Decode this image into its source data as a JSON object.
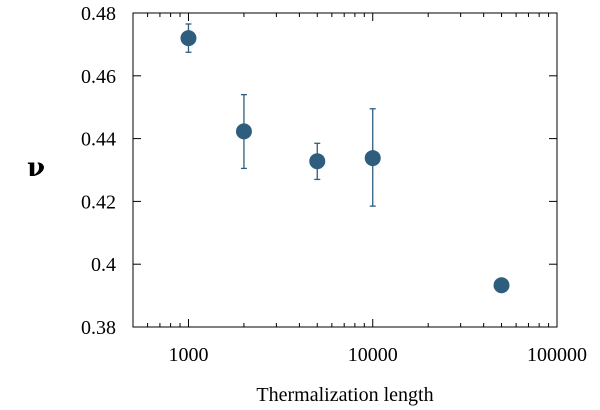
{
  "chart_data": {
    "type": "scatter",
    "title": "",
    "xlabel": "Thermalization length",
    "ylabel": "ν",
    "xscale": "log",
    "xlim": [
      500,
      100000
    ],
    "ylim": [
      0.38,
      0.48
    ],
    "x_ticks": [
      1000,
      10000,
      100000
    ],
    "x_tick_labels": [
      "1000",
      "10000",
      "100000"
    ],
    "y_ticks": [
      0.38,
      0.4,
      0.42,
      0.44,
      0.46,
      0.48
    ],
    "y_tick_labels": [
      "0.38",
      "0.4",
      "0.42",
      "0.44",
      "0.46",
      "0.48"
    ],
    "grid": false,
    "legend": "none",
    "marker_color": "#2e5d7e",
    "series": [
      {
        "points": [
          {
            "x": 1000,
            "y": 0.472,
            "err_low": 0.4675,
            "err_high": 0.4765
          },
          {
            "x": 2000,
            "y": 0.4423,
            "err_low": 0.4305,
            "err_high": 0.454
          },
          {
            "x": 5000,
            "y": 0.4328,
            "err_low": 0.427,
            "err_high": 0.4385
          },
          {
            "x": 10000,
            "y": 0.4338,
            "err_low": 0.4185,
            "err_high": 0.4495
          },
          {
            "x": 50000,
            "y": 0.3933
          }
        ]
      }
    ]
  }
}
